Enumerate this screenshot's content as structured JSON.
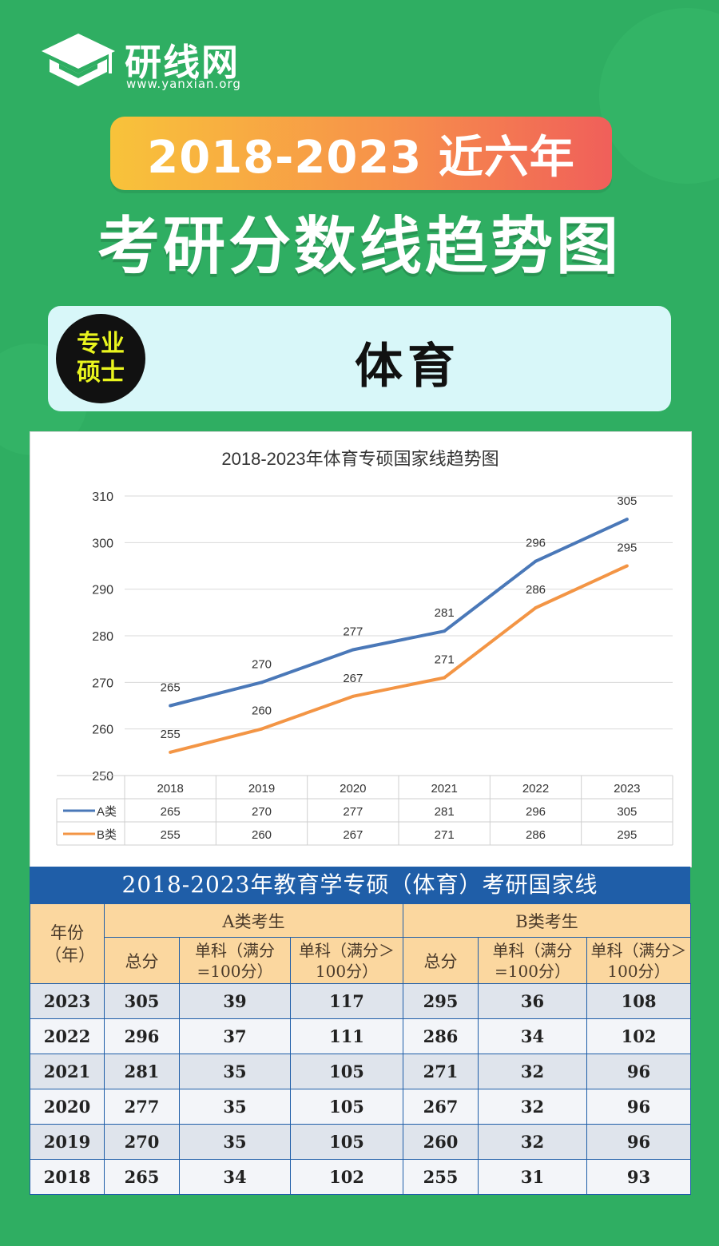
{
  "brand": {
    "name": "研线网",
    "url": "www.yanxian.org"
  },
  "banner": "2018-2023 近六年",
  "title": "考研分数线趋势图",
  "badge": {
    "line1": "专业",
    "line2": "硕士"
  },
  "subject": "体育",
  "colors": {
    "series_a": "#4a78b8",
    "series_b": "#f39545",
    "accent": "#2fae62"
  },
  "chart_data": {
    "type": "line",
    "title": "2018-2023年体育专硕国家线趋势图",
    "categories": [
      "2018",
      "2019",
      "2020",
      "2021",
      "2022",
      "2023"
    ],
    "ylim": [
      250,
      310
    ],
    "yticks": [
      250,
      260,
      270,
      280,
      290,
      300,
      310
    ],
    "grid": true,
    "legend": "data-table",
    "series": [
      {
        "name": "A类",
        "values": [
          265,
          270,
          277,
          281,
          296,
          305
        ]
      },
      {
        "name": "B类",
        "values": [
          255,
          260,
          267,
          271,
          286,
          295
        ]
      }
    ]
  },
  "table": {
    "title": "2018-2023年教育学专硕（体育）考研国家线",
    "year_header": "年份（年）",
    "group_a": "A类考生",
    "group_b": "B类考生",
    "col_total": "总分",
    "col_eq100": "单科（满分=100分）",
    "col_gt100": "单科（满分＞100分）",
    "rows": [
      [
        "2023",
        "305",
        "39",
        "117",
        "295",
        "36",
        "108"
      ],
      [
        "2022",
        "296",
        "37",
        "111",
        "286",
        "34",
        "102"
      ],
      [
        "2021",
        "281",
        "35",
        "105",
        "271",
        "32",
        "96"
      ],
      [
        "2020",
        "277",
        "35",
        "105",
        "267",
        "32",
        "96"
      ],
      [
        "2019",
        "270",
        "35",
        "105",
        "260",
        "32",
        "96"
      ],
      [
        "2018",
        "265",
        "34",
        "102",
        "255",
        "31",
        "93"
      ]
    ]
  }
}
